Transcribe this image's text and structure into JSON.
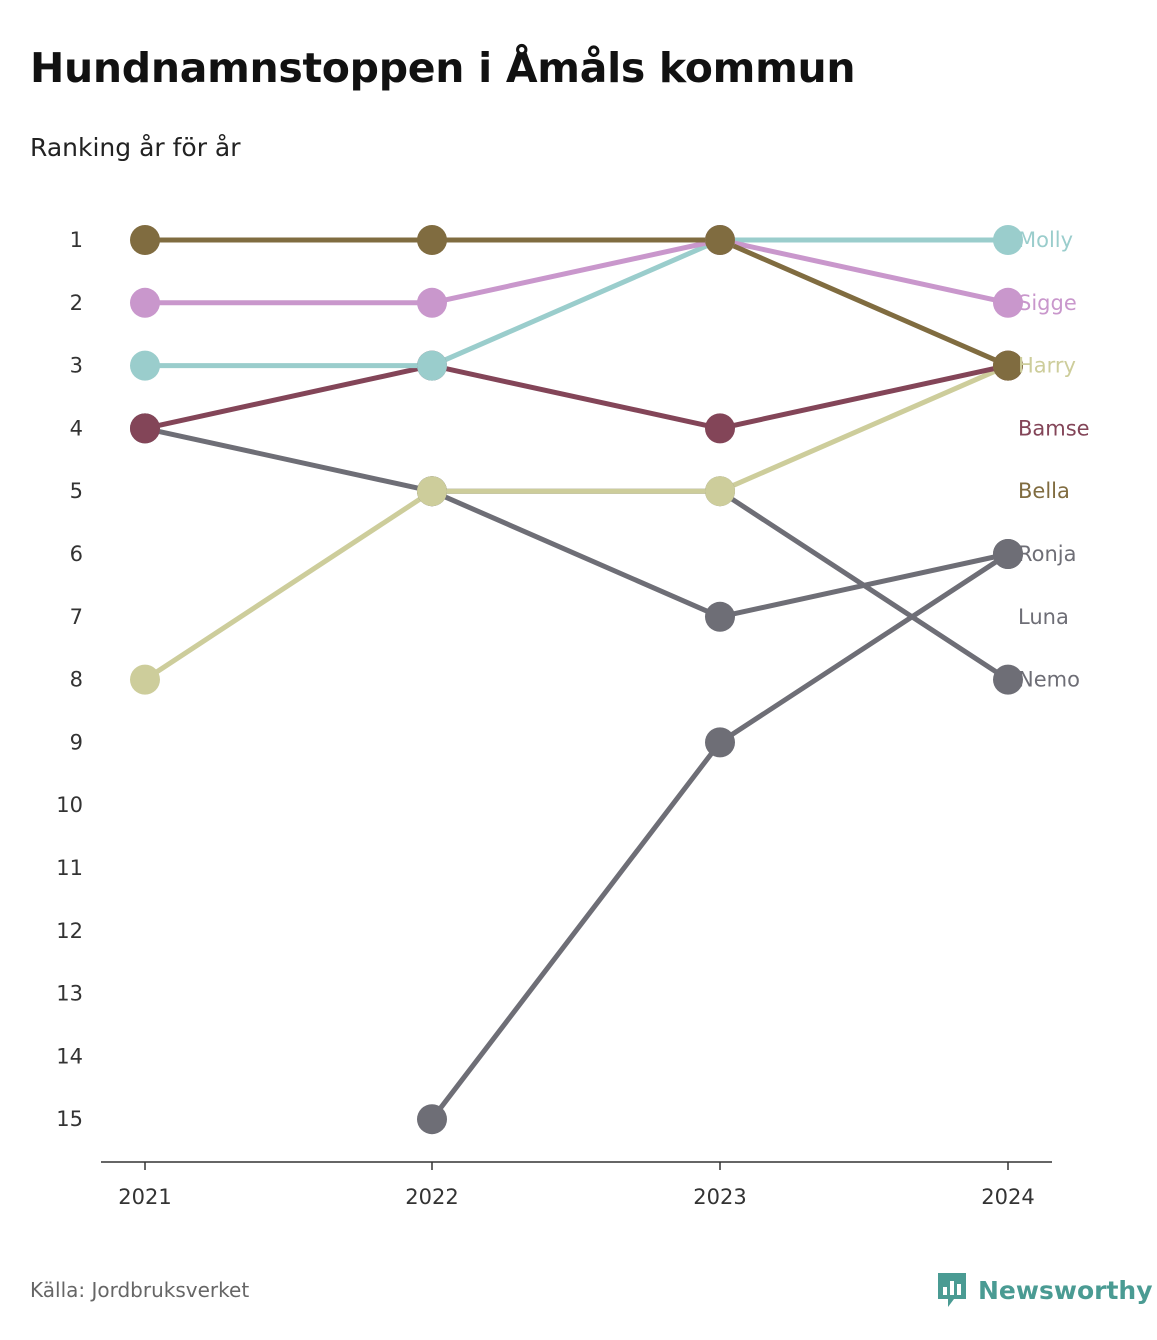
{
  "title": "Hundnamnstoppen i Åmåls kommun",
  "subtitle": "Ranking år för år",
  "source": "Källa: Jordbruksverket",
  "brand": {
    "name": "Newsworthy",
    "icon": "newsworthy-logo-icon",
    "color": "#4a9b93"
  },
  "chart_data": {
    "type": "line",
    "subtype": "bump",
    "x": [
      "2021",
      "2022",
      "2023",
      "2024"
    ],
    "y_ticks": [
      "1",
      "2",
      "3",
      "4",
      "5",
      "6",
      "7",
      "8",
      "9",
      "10",
      "11",
      "12",
      "13",
      "14",
      "15"
    ],
    "ylim": [
      1,
      15
    ],
    "y_inverted": true,
    "grid": false,
    "legend": "labels at right end of lines",
    "series": [
      {
        "name": "Luna",
        "color": "#6e6e76",
        "values": [
          null,
          15,
          9,
          6
        ]
      },
      {
        "name": "Nemo",
        "color": "#6e6e76",
        "values": [
          4,
          5,
          5,
          8
        ]
      },
      {
        "name": "Ronja",
        "color": "#6e6e76",
        "values": [
          null,
          5,
          7,
          6
        ]
      },
      {
        "name": "Harry",
        "color": "#cdcd9b",
        "values": [
          8,
          5,
          5,
          3
        ]
      },
      {
        "name": "Bamse",
        "color": "#834558",
        "values": [
          4,
          3,
          4,
          3
        ]
      },
      {
        "name": "Molly",
        "color": "#9acdcc",
        "values": [
          3,
          3,
          1,
          1
        ]
      },
      {
        "name": "Sigge",
        "color": "#c997cc",
        "values": [
          2,
          2,
          1,
          2
        ]
      },
      {
        "name": "Bella",
        "color": "#806c40",
        "values": [
          1,
          1,
          1,
          3
        ]
      }
    ]
  }
}
